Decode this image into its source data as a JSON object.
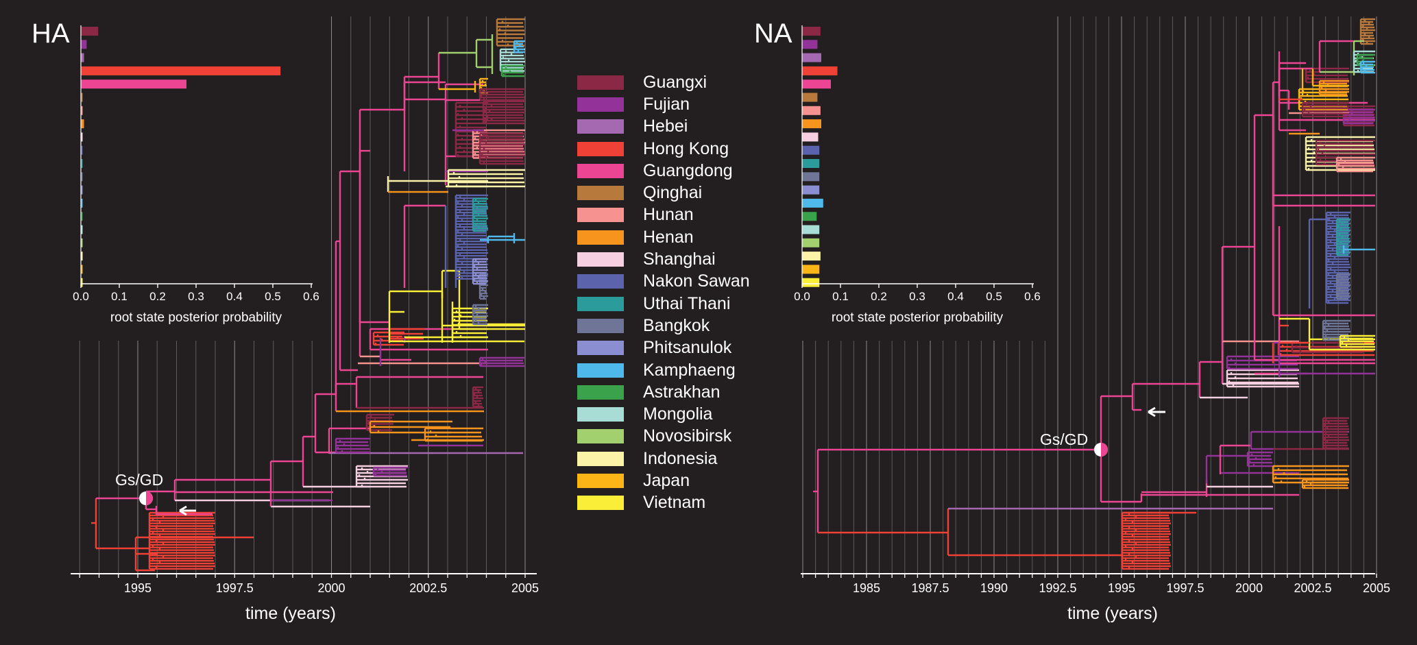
{
  "legend": [
    {
      "name": "Guangxi",
      "color": "#8b2846"
    },
    {
      "name": "Fujian",
      "color": "#93339a"
    },
    {
      "name": "Hebei",
      "color": "#a569b1"
    },
    {
      "name": "Hong Kong",
      "color": "#ef4136"
    },
    {
      "name": "Guangdong",
      "color": "#ec4593"
    },
    {
      "name": "Qinghai",
      "color": "#b8793c"
    },
    {
      "name": "Hunan",
      "color": "#f69391"
    },
    {
      "name": "Henan",
      "color": "#f7941d"
    },
    {
      "name": "Shanghai",
      "color": "#f6cfe0"
    },
    {
      "name": "Nakon Sawan",
      "color": "#5b63ad"
    },
    {
      "name": "Uthai Thani",
      "color": "#2b9b9c"
    },
    {
      "name": "Bangkok",
      "color": "#6f7596"
    },
    {
      "name": "Phitsanulok",
      "color": "#8b8ed0"
    },
    {
      "name": "Kamphaeng",
      "color": "#4eb9ea"
    },
    {
      "name": "Astrakhan",
      "color": "#3aa24a"
    },
    {
      "name": "Mongolia",
      "color": "#a7ddd5"
    },
    {
      "name": "Novosibirsk",
      "color": "#a2d06f"
    },
    {
      "name": "Indonesia",
      "color": "#fbf3a7"
    },
    {
      "name": "Japan",
      "color": "#fbb516"
    },
    {
      "name": "Vietnam",
      "color": "#fbee38"
    }
  ],
  "chart_data": [
    {
      "type": "bar",
      "orientation": "horizontal",
      "panel": "HA",
      "title": "HA",
      "categories": [
        "Guangxi",
        "Fujian",
        "Hebei",
        "Hong Kong",
        "Guangdong",
        "Qinghai",
        "Hunan",
        "Henan",
        "Shanghai",
        "Nakon Sawan",
        "Uthai Thani",
        "Bangkok",
        "Phitsanulok",
        "Kamphaeng",
        "Astrakhan",
        "Mongolia",
        "Novosibirsk",
        "Indonesia",
        "Japan",
        "Vietnam"
      ],
      "values": [
        0.045,
        0.015,
        0.008,
        0.52,
        0.275,
        0.004,
        0.004,
        0.008,
        0.004,
        0.004,
        0.004,
        0.004,
        0.004,
        0.004,
        0.004,
        0.004,
        0.004,
        0.004,
        0.004,
        0.004
      ],
      "xlabel": "root state posterior probability",
      "xticks": [
        "0.0",
        "0.1",
        "0.2",
        "0.3",
        "0.4",
        "0.5",
        "0.6"
      ],
      "xlim": [
        0,
        0.6
      ]
    },
    {
      "type": "bar",
      "orientation": "horizontal",
      "panel": "NA",
      "title": "NA",
      "categories": [
        "Guangxi",
        "Fujian",
        "Hebei",
        "Hong Kong",
        "Guangdong",
        "Qinghai",
        "Hunan",
        "Henan",
        "Shanghai",
        "Nakon Sawan",
        "Uthai Thani",
        "Bangkok",
        "Phitsanulok",
        "Kamphaeng",
        "Astrakhan",
        "Mongolia",
        "Novosibirsk",
        "Indonesia",
        "Japan",
        "Vietnam"
      ],
      "values": [
        0.048,
        0.04,
        0.05,
        0.092,
        0.075,
        0.04,
        0.048,
        0.05,
        0.042,
        0.045,
        0.045,
        0.045,
        0.045,
        0.055,
        0.038,
        0.045,
        0.045,
        0.048,
        0.045,
        0.045
      ],
      "xlabel": "root state posterior probability",
      "xticks": [
        "0.0",
        "0.1",
        "0.2",
        "0.3",
        "0.4",
        "0.5",
        "0.6"
      ],
      "xlim": [
        0,
        0.6
      ]
    },
    {
      "type": "line",
      "panel": "HA",
      "description": "time-scaled phylogenetic tree, branches coloured by location",
      "xlabel": "time (years)",
      "xticks": [
        "1995",
        "1997.5",
        "2000",
        "2002.5",
        "2005"
      ],
      "xlim": [
        1993.2,
        2005.3
      ],
      "annotation": "Gs/GD"
    },
    {
      "type": "line",
      "panel": "NA",
      "description": "time-scaled phylogenetic tree, branches coloured by location",
      "xlabel": "time (years)",
      "xticks": [
        "1985",
        "1987.5",
        "1990",
        "1992.5",
        "1995",
        "1997.5",
        "2000",
        "2002.5",
        "2005"
      ],
      "xlim": [
        1982.2,
        2005
      ],
      "annotation": "Gs/GD"
    }
  ]
}
